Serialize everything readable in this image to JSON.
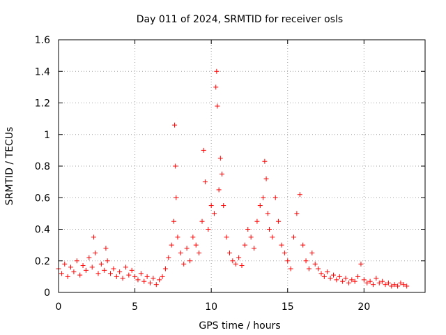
{
  "chart_data": {
    "type": "scatter",
    "title": "Day 011 of 2024, SRMTID for receiver osls",
    "xlabel": "GPS time / hours",
    "ylabel": "SRMTID / TECUs",
    "xlim": [
      0,
      24
    ],
    "ylim": [
      0,
      1.6
    ],
    "xticks": [
      0,
      5,
      10,
      15,
      20
    ],
    "yticks": [
      0,
      0.2,
      0.4,
      0.6,
      0.8,
      1,
      1.2,
      1.4,
      1.6
    ],
    "xtick_labels": [
      "0",
      "5",
      "10",
      "15",
      "20"
    ],
    "ytick_labels": [
      "0",
      "0.2",
      "0.4",
      "0.6",
      "0.8",
      "1",
      "1.2",
      "1.4",
      "1.6"
    ],
    "grid": true,
    "marker": "+",
    "series": [
      {
        "name": "osls",
        "color": "#ff0000",
        "x": [
          0.0,
          0.2,
          0.4,
          0.6,
          0.8,
          1.0,
          1.2,
          1.4,
          1.6,
          1.8,
          2.0,
          2.2,
          2.3,
          2.4,
          2.6,
          2.8,
          3.0,
          3.1,
          3.2,
          3.4,
          3.6,
          3.8,
          4.0,
          4.2,
          4.4,
          4.6,
          4.8,
          5.0,
          5.2,
          5.4,
          5.6,
          5.8,
          6.0,
          6.2,
          6.4,
          6.6,
          6.8,
          7.0,
          7.2,
          7.4,
          7.55,
          7.6,
          7.65,
          7.7,
          7.8,
          8.0,
          8.2,
          8.4,
          8.6,
          8.8,
          9.0,
          9.2,
          9.4,
          9.5,
          9.6,
          9.8,
          10.0,
          10.2,
          10.3,
          10.35,
          10.4,
          10.5,
          10.6,
          10.7,
          10.8,
          11.0,
          11.2,
          11.4,
          11.6,
          11.8,
          12.0,
          12.2,
          12.4,
          12.6,
          12.8,
          13.0,
          13.2,
          13.4,
          13.5,
          13.6,
          13.7,
          13.8,
          14.0,
          14.2,
          14.4,
          14.6,
          14.8,
          15.0,
          15.2,
          15.4,
          15.6,
          15.8,
          16.0,
          16.2,
          16.4,
          16.6,
          16.8,
          17.0,
          17.2,
          17.4,
          17.6,
          17.8,
          18.0,
          18.2,
          18.4,
          18.6,
          18.8,
          19.0,
          19.2,
          19.4,
          19.6,
          19.8,
          20.0,
          20.2,
          20.4,
          20.6,
          20.8,
          21.0,
          21.2,
          21.4,
          21.6,
          21.8,
          22.0,
          22.2,
          22.4,
          22.6,
          22.8
        ],
        "y": [
          0.15,
          0.12,
          0.18,
          0.1,
          0.16,
          0.13,
          0.2,
          0.11,
          0.17,
          0.14,
          0.22,
          0.16,
          0.35,
          0.25,
          0.12,
          0.18,
          0.14,
          0.28,
          0.2,
          0.12,
          0.15,
          0.1,
          0.13,
          0.09,
          0.16,
          0.11,
          0.14,
          0.1,
          0.08,
          0.12,
          0.07,
          0.1,
          0.06,
          0.09,
          0.05,
          0.08,
          0.1,
          0.15,
          0.22,
          0.3,
          0.45,
          1.06,
          0.8,
          0.6,
          0.35,
          0.25,
          0.18,
          0.28,
          0.2,
          0.35,
          0.3,
          0.25,
          0.45,
          0.9,
          0.7,
          0.4,
          0.55,
          0.5,
          1.3,
          1.4,
          1.18,
          0.65,
          0.85,
          0.75,
          0.55,
          0.35,
          0.25,
          0.2,
          0.18,
          0.22,
          0.17,
          0.3,
          0.4,
          0.35,
          0.28,
          0.45,
          0.55,
          0.6,
          0.83,
          0.72,
          0.5,
          0.4,
          0.35,
          0.6,
          0.45,
          0.3,
          0.25,
          0.2,
          0.15,
          0.35,
          0.5,
          0.62,
          0.3,
          0.2,
          0.15,
          0.25,
          0.18,
          0.15,
          0.12,
          0.1,
          0.13,
          0.09,
          0.11,
          0.08,
          0.1,
          0.07,
          0.09,
          0.06,
          0.08,
          0.07,
          0.1,
          0.18,
          0.08,
          0.06,
          0.07,
          0.05,
          0.09,
          0.06,
          0.07,
          0.05,
          0.06,
          0.04,
          0.05,
          0.04,
          0.06,
          0.05,
          0.04
        ]
      }
    ]
  }
}
